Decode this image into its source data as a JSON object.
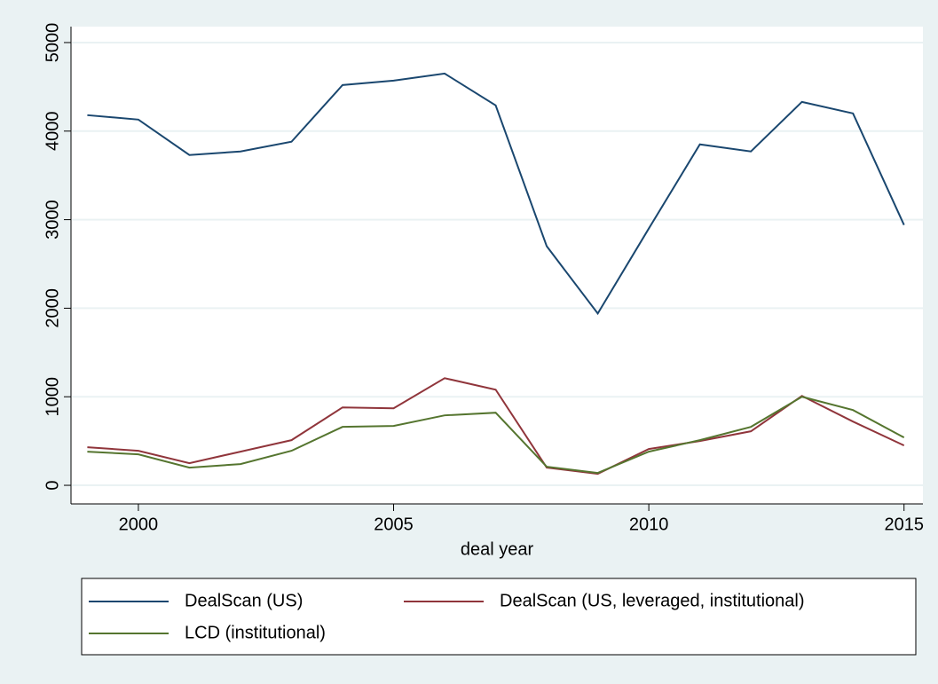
{
  "chart_data": {
    "type": "line",
    "x_label": "deal year",
    "x": [
      1999,
      2000,
      2001,
      2002,
      2003,
      2004,
      2005,
      2006,
      2007,
      2008,
      2009,
      2010,
      2011,
      2012,
      2013,
      2014,
      2015
    ],
    "series": [
      {
        "name": "DealScan (US)",
        "color": "#1a476f",
        "values": [
          4180,
          4130,
          3730,
          3770,
          3880,
          4520,
          4570,
          4650,
          4290,
          2700,
          1940,
          2900,
          3850,
          3770,
          4330,
          4200,
          2940
        ]
      },
      {
        "name": "DealScan (US, leveraged, institutional)",
        "color": "#90353b",
        "values": [
          430,
          390,
          250,
          380,
          510,
          880,
          870,
          1210,
          1080,
          200,
          130,
          410,
          500,
          610,
          1010,
          720,
          450
        ]
      },
      {
        "name": "LCD (institutional)",
        "color": "#55752f",
        "values": [
          380,
          350,
          200,
          240,
          390,
          660,
          670,
          790,
          820,
          210,
          140,
          380,
          510,
          660,
          1000,
          850,
          540
        ]
      }
    ],
    "xlim": [
      1998.68,
      2015.37
    ],
    "xticks": [
      2000,
      2005,
      2010,
      2015
    ],
    "ylim": [
      -210,
      5180
    ],
    "yticks": [
      0,
      1000,
      2000,
      3000,
      4000,
      5000
    ],
    "grid": true
  }
}
